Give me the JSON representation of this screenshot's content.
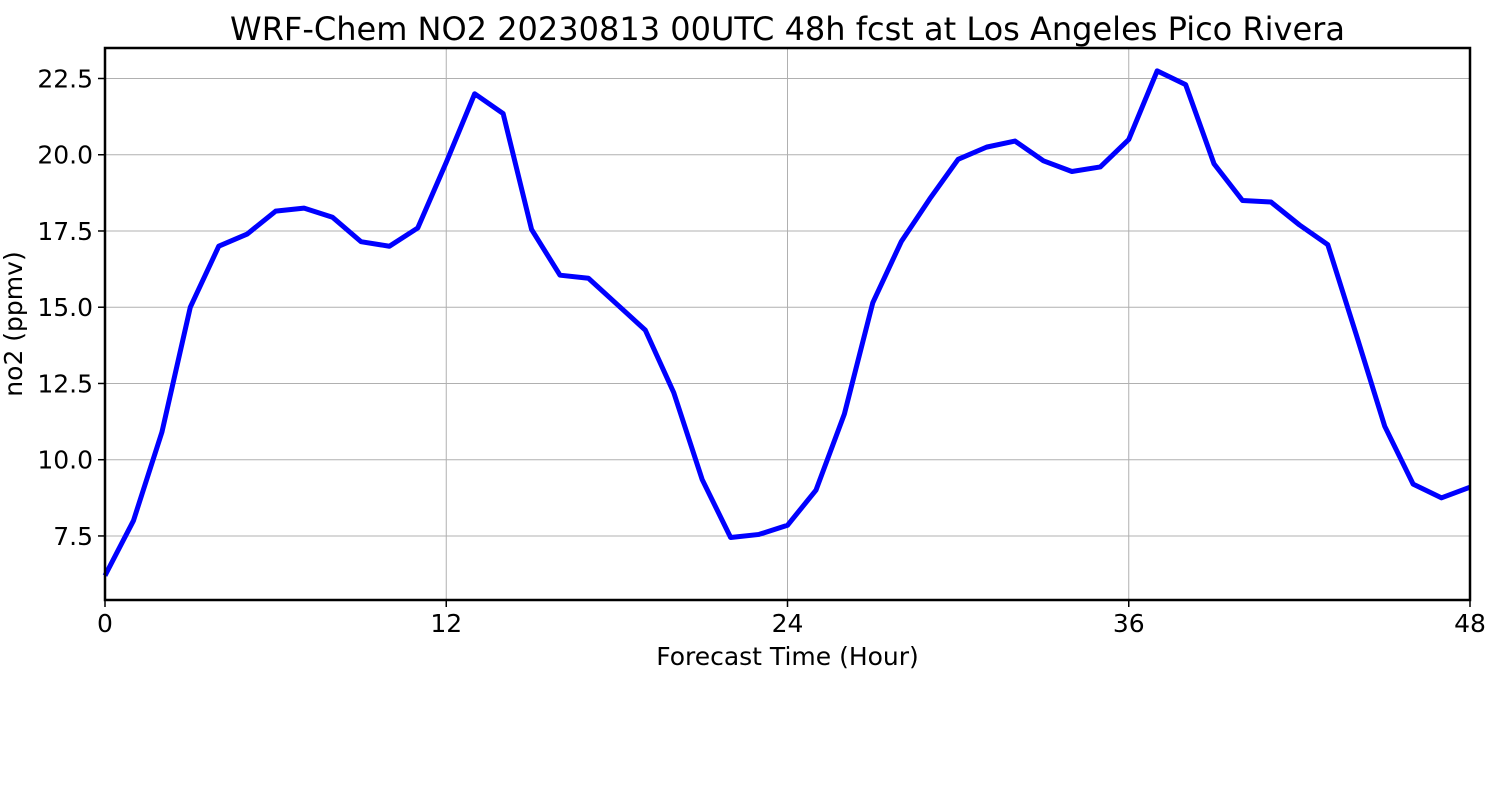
{
  "chart_data": {
    "type": "line",
    "title": "WRF-Chem NO2  20230813 00UTC 48h fcst at Los Angeles Pico Rivera",
    "xlabel": "Forecast Time (Hour)",
    "ylabel": "no2  (ppmv)",
    "xlim": [
      0,
      48
    ],
    "ylim": [
      5.4,
      23.5
    ],
    "xticks": [
      0,
      12,
      24,
      36,
      48
    ],
    "xtick_labels": [
      "0",
      "12",
      "24",
      "36",
      "48"
    ],
    "yticks": [
      7.5,
      10.0,
      12.5,
      15.0,
      17.5,
      20.0,
      22.5
    ],
    "ytick_labels": [
      "7.5",
      "10.0",
      "12.5",
      "15.0",
      "17.5",
      "20.0",
      "22.5"
    ],
    "grid": true,
    "line_color": "#0000ff",
    "series": [
      {
        "x": [
          0,
          1,
          2,
          3,
          4,
          5,
          6,
          7,
          8,
          9,
          10,
          11,
          12,
          13,
          14,
          15,
          16,
          17,
          18,
          19,
          20,
          21,
          22,
          23,
          24,
          25,
          26,
          27,
          28,
          29,
          30,
          31,
          32,
          33,
          34,
          35,
          36,
          37,
          38,
          39,
          40,
          41,
          42,
          43,
          44,
          45,
          46,
          47,
          48
        ],
        "values": [
          6.2,
          8.0,
          10.9,
          15.0,
          17.0,
          17.4,
          18.15,
          18.25,
          17.95,
          17.15,
          17.0,
          17.6,
          19.75,
          22.0,
          21.35,
          17.55,
          16.05,
          15.95,
          15.1,
          14.25,
          12.2,
          9.35,
          7.45,
          7.55,
          7.85,
          9.0,
          11.5,
          15.15,
          17.15,
          18.55,
          19.85,
          20.25,
          20.45,
          19.8,
          19.45,
          19.6,
          20.5,
          22.75,
          22.3,
          19.7,
          18.5,
          18.45,
          17.7,
          17.05,
          14.1,
          11.1,
          9.2,
          8.75,
          9.1
        ]
      }
    ]
  }
}
